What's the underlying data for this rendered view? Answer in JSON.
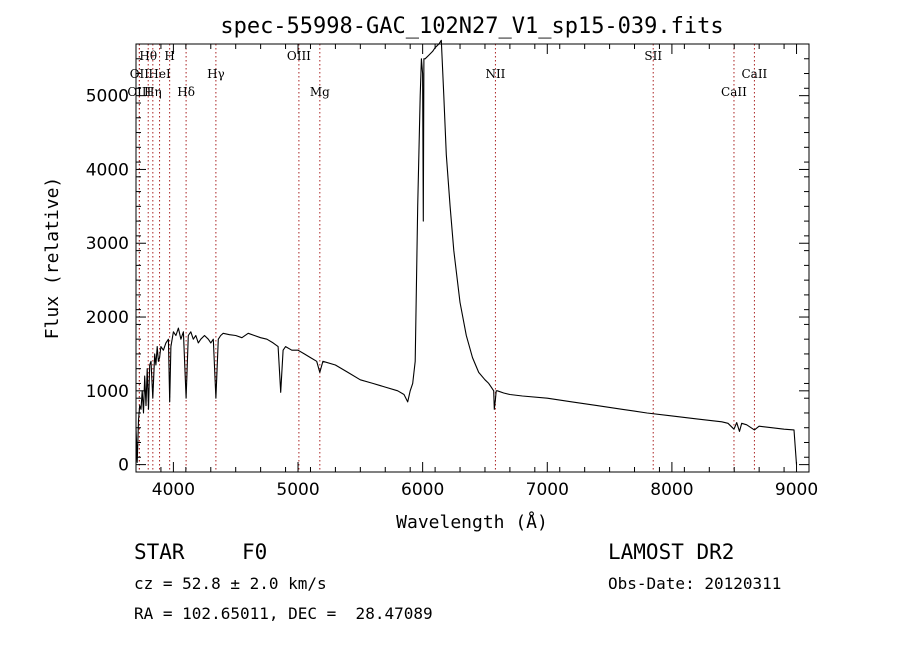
{
  "chart_data": {
    "type": "line",
    "title": "spec-55998-GAC_102N27_V1_sp15-039.fits",
    "xlabel": "Wavelength (Å)",
    "ylabel": "Flux (relative)",
    "xlim": [
      3700,
      9100
    ],
    "ylim": [
      -100,
      5700
    ],
    "xticks": [
      4000,
      5000,
      6000,
      7000,
      8000,
      9000
    ],
    "yticks": [
      0,
      1000,
      2000,
      3000,
      4000,
      5000
    ],
    "grid": false,
    "line_color": "#000000",
    "marker_color": "#aa2222",
    "lines": [
      {
        "label": "Hθ",
        "x": 3798,
        "row": 0
      },
      {
        "label": "H",
        "x": 3970,
        "row": 0
      },
      {
        "label": "OII",
        "x": 3727,
        "row": 1
      },
      {
        "label": "HeI",
        "x": 3889,
        "row": 1
      },
      {
        "label": "OIII",
        "x": 3727,
        "row": 2
      },
      {
        "label": "Hη",
        "x": 3835,
        "row": 2
      },
      {
        "label": "Hδ",
        "x": 4102,
        "row": 2
      },
      {
        "label": "Hγ",
        "x": 4341,
        "row": 1
      },
      {
        "label": "OIII",
        "x": 5007,
        "row": 0
      },
      {
        "label": "Mg",
        "x": 5175,
        "row": 2
      },
      {
        "label": "NII",
        "x": 6584,
        "row": 1
      },
      {
        "label": "SII",
        "x": 7850,
        "row": 0
      },
      {
        "label": "CaII",
        "x": 8662,
        "row": 1
      },
      {
        "label": "CaII",
        "x": 8498,
        "row": 2
      }
    ],
    "series": [
      {
        "x": [
          3700,
          3710,
          3720,
          3730,
          3740,
          3750,
          3760,
          3770,
          3780,
          3790,
          3800,
          3810,
          3820,
          3835,
          3850,
          3860,
          3870,
          3880,
          3889,
          3900,
          3920,
          3940,
          3960,
          3970,
          3980,
          4000,
          4020,
          4040,
          4060,
          4080,
          4102,
          4120,
          4140,
          4160,
          4180,
          4200,
          4220,
          4250,
          4280,
          4300,
          4320,
          4341,
          4360,
          4380,
          4400,
          4450,
          4500,
          4550,
          4600,
          4650,
          4700,
          4750,
          4800,
          4840,
          4861,
          4880,
          4900,
          4950,
          5000,
          5050,
          5100,
          5150,
          5175,
          5200,
          5300,
          5400,
          5500,
          5600,
          5700,
          5800,
          5850,
          5880,
          5900,
          5920,
          5940,
          5960,
          5980,
          5990,
          6000,
          6005,
          6010,
          6020,
          6050,
          6080,
          6100,
          6130,
          6150,
          6170,
          6190,
          6220,
          6250,
          6300,
          6350,
          6400,
          6450,
          6500,
          6530,
          6550,
          6570,
          6575,
          6584,
          6590,
          6600,
          6650,
          6700,
          6800,
          7000,
          7200,
          7400,
          7600,
          7800,
          8000,
          8200,
          8400,
          8450,
          8498,
          8520,
          8542,
          8560,
          8600,
          8662,
          8700,
          8800,
          8900,
          8980,
          9000
        ],
        "y": [
          500,
          30,
          600,
          800,
          750,
          1000,
          700,
          1200,
          800,
          1300,
          750,
          1350,
          1400,
          900,
          1500,
          1350,
          1600,
          1400,
          1450,
          1600,
          1550,
          1650,
          1700,
          850,
          1600,
          1800,
          1750,
          1850,
          1700,
          1800,
          900,
          1750,
          1800,
          1700,
          1750,
          1650,
          1700,
          1750,
          1700,
          1650,
          1700,
          900,
          1700,
          1750,
          1780,
          1760,
          1750,
          1720,
          1780,
          1750,
          1720,
          1700,
          1650,
          1600,
          980,
          1550,
          1600,
          1550,
          1550,
          1500,
          1450,
          1400,
          1250,
          1400,
          1350,
          1250,
          1150,
          1100,
          1050,
          1000,
          950,
          850,
          1000,
          1100,
          1400,
          3500,
          5000,
          5500,
          5300,
          3300,
          5500,
          5500,
          5550,
          5600,
          5650,
          5700,
          5750,
          5000,
          4200,
          3500,
          2900,
          2200,
          1750,
          1450,
          1250,
          1150,
          1100,
          1050,
          1000,
          750,
          880,
          1000,
          1000,
          970,
          950,
          930,
          900,
          850,
          800,
          750,
          700,
          660,
          620,
          580,
          560,
          480,
          570,
          450,
          560,
          540,
          470,
          520,
          500,
          480,
          470,
          0
        ]
      }
    ]
  },
  "info": {
    "object_class": "STAR",
    "subclass": "F0",
    "survey": "LAMOST DR2",
    "cz": "cz = 52.8 ± 2.0 km/s",
    "obs_date": "Obs-Date: 20120311",
    "coords": "RA = 102.65011, DEC =  28.47089"
  }
}
